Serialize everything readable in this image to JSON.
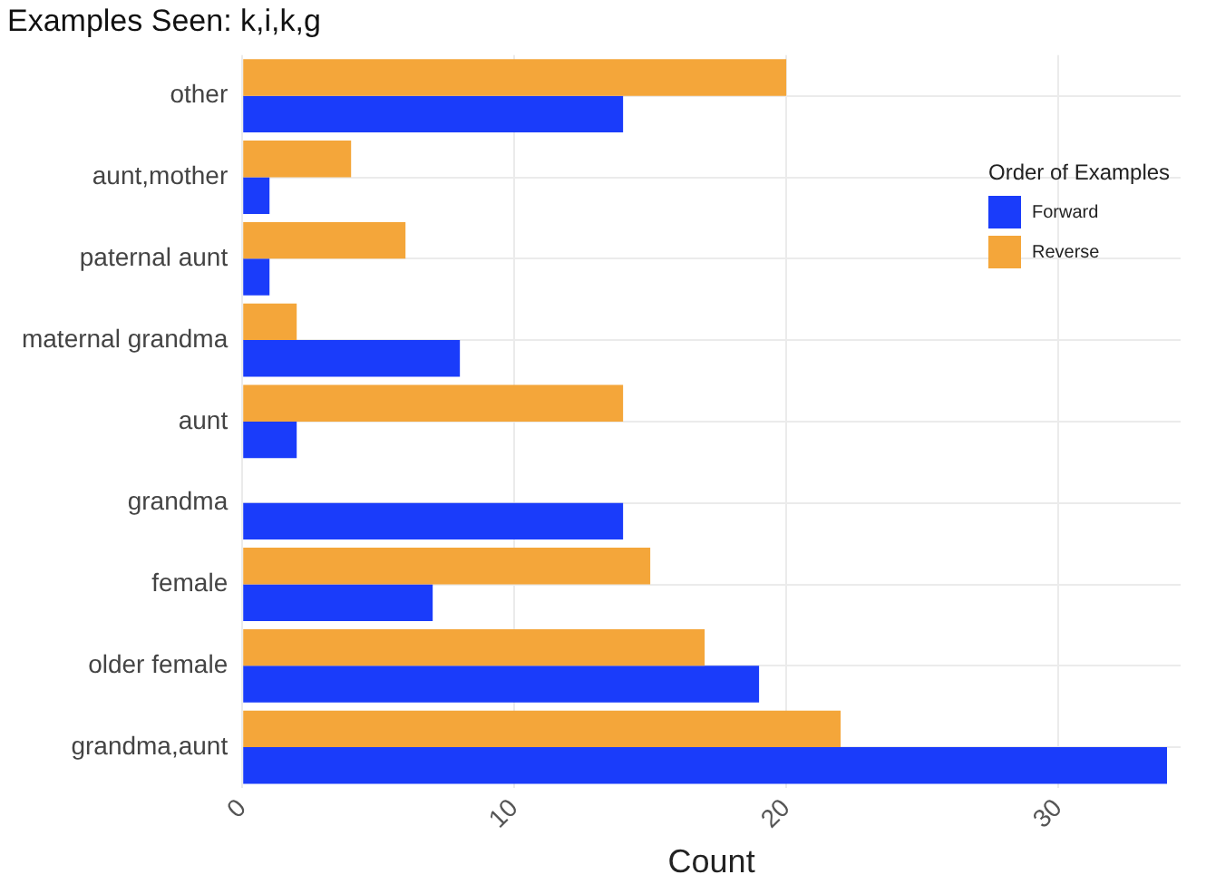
{
  "chart_data": {
    "type": "bar",
    "orientation": "horizontal",
    "title": "Examples Seen: k,i,k,g",
    "xlabel": "Count",
    "legend_title": "Order of Examples",
    "legend": "top right",
    "grid": true,
    "categories": [
      "other",
      "aunt,mother",
      "paternal aunt",
      "maternal grandma",
      "aunt",
      "grandma",
      "female",
      "older female",
      "grandma,aunt"
    ],
    "series": [
      {
        "name": "Forward",
        "color": "#1a3cfa",
        "values": [
          14,
          1,
          1,
          8,
          2,
          14,
          7,
          19,
          34
        ]
      },
      {
        "name": "Reverse",
        "color": "#f4a63a",
        "values": [
          20,
          4,
          6,
          2,
          14,
          0,
          15,
          17,
          22
        ]
      }
    ],
    "xlim": [
      0,
      34.5
    ],
    "xticks": [
      0,
      10,
      20,
      30
    ]
  }
}
